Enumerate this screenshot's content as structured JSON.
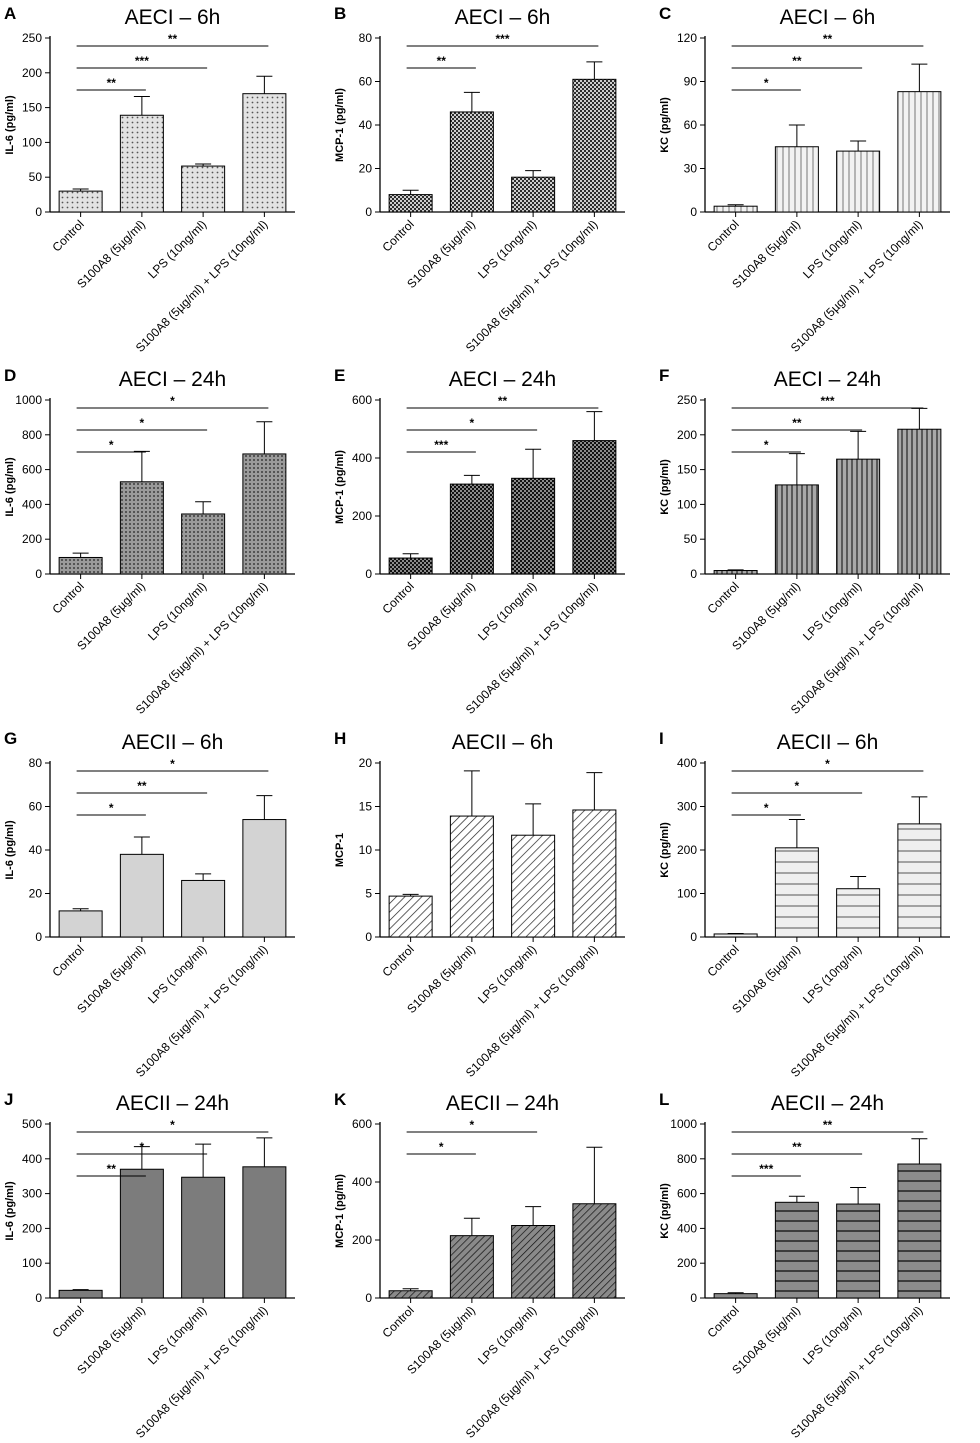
{
  "figure": {
    "description_free": true
  },
  "chart_data": [
    {
      "id": "A",
      "type": "bar",
      "letter": "A",
      "title": "AECI – 6h",
      "ylabel": "IL-6 (pg/ml)",
      "ylim": [
        0,
        250
      ],
      "yticks": [
        0,
        50,
        100,
        150,
        200,
        250
      ],
      "categories": [
        "Control",
        "S100A8 (5µg/ml)",
        "LPS (10ng/ml)",
        "S100A8 (5µg/ml) + LPS (10ng/ml)"
      ],
      "values": [
        30,
        139,
        66,
        170
      ],
      "errors": [
        3,
        27,
        3,
        25
      ],
      "brackets": [
        {
          "from": 0,
          "to": 1,
          "label": "**"
        },
        {
          "from": 0,
          "to": 2,
          "label": "***"
        },
        {
          "from": 0,
          "to": 3,
          "label": "**"
        }
      ],
      "fill": "#e2e2e2",
      "pattern": "dots-light"
    },
    {
      "id": "B",
      "type": "bar",
      "letter": "B",
      "title": "AECI – 6h",
      "ylabel": "MCP-1 (pg/ml)",
      "ylim": [
        0,
        80
      ],
      "yticks": [
        0,
        20,
        40,
        60,
        80
      ],
      "categories": [
        "Control",
        "S100A8 (5µg/ml)",
        "LPS (10ng/ml)",
        "S100A8 (5µg/ml) + LPS (10ng/ml)"
      ],
      "values": [
        8,
        46,
        16,
        61
      ],
      "errors": [
        2,
        9,
        3,
        8
      ],
      "brackets": [
        {
          "from": 0,
          "to": 1,
          "label": "**"
        },
        {
          "from": 0,
          "to": 3,
          "label": "***"
        }
      ],
      "fill": "#a6a6a6",
      "pattern": "checker"
    },
    {
      "id": "C",
      "type": "bar",
      "letter": "C",
      "title": "AECI – 6h",
      "ylabel": "KC (pg/ml)",
      "ylim": [
        0,
        120
      ],
      "yticks": [
        0,
        30,
        60,
        90,
        120
      ],
      "categories": [
        "Control",
        "S100A8 (5µg/ml)",
        "LPS (10ng/ml)",
        "S100A8 (5µg/ml) + LPS (10ng/ml)"
      ],
      "values": [
        4,
        45,
        42,
        83
      ],
      "errors": [
        1,
        15,
        7,
        19
      ],
      "brackets": [
        {
          "from": 0,
          "to": 1,
          "label": "*"
        },
        {
          "from": 0,
          "to": 2,
          "label": "**"
        },
        {
          "from": 0,
          "to": 3,
          "label": "**"
        }
      ],
      "fill": "#f0f0f0",
      "pattern": "vlines-light"
    },
    {
      "id": "D",
      "type": "bar",
      "letter": "D",
      "title": "AECI – 24h",
      "ylabel": "IL-6 (pg/ml)",
      "ylim": [
        0,
        1000
      ],
      "yticks": [
        0,
        200,
        400,
        600,
        800,
        1000
      ],
      "categories": [
        "Control",
        "S100A8 (5µg/ml)",
        "LPS (10ng/ml)",
        "S100A8 (5µg/ml) + LPS (10ng/ml)"
      ],
      "values": [
        95,
        530,
        345,
        690
      ],
      "errors": [
        25,
        175,
        70,
        185
      ],
      "brackets": [
        {
          "from": 0,
          "to": 1,
          "label": "*"
        },
        {
          "from": 0,
          "to": 2,
          "label": "*"
        },
        {
          "from": 0,
          "to": 3,
          "label": "*"
        }
      ],
      "fill": "#8f8f8f",
      "pattern": "dots-dark"
    },
    {
      "id": "E",
      "type": "bar",
      "letter": "E",
      "title": "AECI – 24h",
      "ylabel": "MCP-1 (pg/ml)",
      "ylim": [
        0,
        600
      ],
      "yticks": [
        0,
        200,
        400,
        600
      ],
      "categories": [
        "Control",
        "S100A8 (5µg/ml)",
        "LPS (10ng/ml)",
        "S100A8 (5µg/ml) + LPS (10ng/ml)"
      ],
      "values": [
        55,
        310,
        330,
        460
      ],
      "errors": [
        15,
        30,
        100,
        100
      ],
      "brackets": [
        {
          "from": 0,
          "to": 1,
          "label": "***"
        },
        {
          "from": 0,
          "to": 2,
          "label": "*"
        },
        {
          "from": 0,
          "to": 3,
          "label": "**"
        }
      ],
      "fill": "#4a4a4a",
      "pattern": "checker-dark"
    },
    {
      "id": "F",
      "type": "bar",
      "letter": "F",
      "title": "AECI – 24h",
      "ylabel": "KC (pg/ml)",
      "ylim": [
        0,
        250
      ],
      "yticks": [
        0,
        50,
        100,
        150,
        200,
        250
      ],
      "categories": [
        "Control",
        "S100A8 (5µg/ml)",
        "LPS (10ng/ml)",
        "S100A8 (5µg/ml) + LPS (10ng/ml)"
      ],
      "values": [
        5,
        128,
        165,
        208
      ],
      "errors": [
        1,
        45,
        40,
        30
      ],
      "brackets": [
        {
          "from": 0,
          "to": 1,
          "label": "*"
        },
        {
          "from": 0,
          "to": 2,
          "label": "**"
        },
        {
          "from": 0,
          "to": 3,
          "label": "***"
        }
      ],
      "fill": "#9a9a9a",
      "pattern": "vlines-dark"
    },
    {
      "id": "G",
      "type": "bar",
      "letter": "G",
      "title": "AECII – 6h",
      "ylabel": "IL-6 (pg/ml)",
      "ylim": [
        0,
        80
      ],
      "yticks": [
        0,
        20,
        40,
        60,
        80
      ],
      "categories": [
        "Control",
        "S100A8 (5µg/ml)",
        "LPS (10ng/ml)",
        "S100A8 (5µg/ml) + LPS (10ng/ml)"
      ],
      "values": [
        12,
        38,
        26,
        54
      ],
      "errors": [
        1,
        8,
        3,
        11
      ],
      "brackets": [
        {
          "from": 0,
          "to": 1,
          "label": "*"
        },
        {
          "from": 0,
          "to": 2,
          "label": "**"
        },
        {
          "from": 0,
          "to": 3,
          "label": "*"
        }
      ],
      "fill": "#d3d3d3",
      "pattern": "none"
    },
    {
      "id": "H",
      "type": "bar",
      "letter": "H",
      "title": "AECII – 6h",
      "ylabel": "MCP-1",
      "ylim": [
        0,
        20
      ],
      "yticks": [
        0,
        5,
        10,
        15,
        20
      ],
      "categories": [
        "Control",
        "S100A8 (5µg/ml)",
        "LPS (10ng/ml)",
        "S100A8 (5µg/ml) + LPS (10ng/ml)"
      ],
      "values": [
        4.7,
        13.9,
        11.7,
        14.6
      ],
      "errors": [
        0.2,
        5.2,
        3.6,
        4.3
      ],
      "brackets": [],
      "fill": "#ffffff",
      "pattern": "diag"
    },
    {
      "id": "I",
      "type": "bar",
      "letter": "I",
      "title": "AECII – 6h",
      "ylabel": "KC (pg/ml)",
      "ylim": [
        0,
        400
      ],
      "yticks": [
        0,
        100,
        200,
        300,
        400
      ],
      "categories": [
        "Control",
        "S100A8 (5µg/ml)",
        "LPS (10ng/ml)",
        "S100A8 (5µg/ml) + LPS (10ng/ml)"
      ],
      "values": [
        7,
        205,
        111,
        260
      ],
      "errors": [
        1,
        65,
        28,
        62
      ],
      "brackets": [
        {
          "from": 0,
          "to": 1,
          "label": "*"
        },
        {
          "from": 0,
          "to": 2,
          "label": "*"
        },
        {
          "from": 0,
          "to": 3,
          "label": "*"
        }
      ],
      "fill": "#ededed",
      "pattern": "hlines-light"
    },
    {
      "id": "J",
      "type": "bar",
      "letter": "J",
      "title": "AECII – 24h",
      "ylabel": "IL-6 (pg/ml)",
      "ylim": [
        0,
        500
      ],
      "yticks": [
        0,
        100,
        200,
        300,
        400,
        500
      ],
      "categories": [
        "Control",
        "S100A8 (5µg/ml)",
        "LPS (10ng/ml)",
        "S100A8 (5µg/ml) + LPS (10ng/ml)"
      ],
      "values": [
        22,
        370,
        347,
        377
      ],
      "errors": [
        2,
        65,
        95,
        83
      ],
      "brackets": [
        {
          "from": 0,
          "to": 1,
          "label": "**"
        },
        {
          "from": 0,
          "to": 2,
          "label": "*"
        },
        {
          "from": 0,
          "to": 3,
          "label": "*"
        }
      ],
      "fill": "#7c7c7c",
      "pattern": "none"
    },
    {
      "id": "K",
      "type": "bar",
      "letter": "K",
      "title": "AECII – 24h",
      "ylabel": "MCP-1 (pg/ml)",
      "ylim": [
        0,
        600
      ],
      "yticks": [
        0,
        200,
        400,
        600
      ],
      "categories": [
        "Control",
        "S100A8 (5µg/ml)",
        "LPS (10ng/ml)",
        "S100A8 (5µg/ml) + LPS (10ng/ml)"
      ],
      "values": [
        25,
        215,
        250,
        325
      ],
      "errors": [
        7,
        60,
        65,
        195
      ],
      "brackets": [
        {
          "from": 0,
          "to": 1,
          "label": "*"
        },
        {
          "from": 0,
          "to": 2,
          "label": "*"
        }
      ],
      "fill": "#8a8a8a",
      "pattern": "diag-dark"
    },
    {
      "id": "L",
      "type": "bar",
      "letter": "L",
      "title": "AECII – 24h",
      "ylabel": "KC (pg/ml)",
      "ylim": [
        0,
        1000
      ],
      "yticks": [
        0,
        200,
        400,
        600,
        800,
        1000
      ],
      "categories": [
        "Control",
        "S100A8 (5µg/ml)",
        "LPS (10ng/ml)",
        "S100A8 (5µg/ml) + LPS (10ng/ml)"
      ],
      "values": [
        25,
        550,
        540,
        770
      ],
      "errors": [
        5,
        35,
        95,
        145
      ],
      "brackets": [
        {
          "from": 0,
          "to": 1,
          "label": "***"
        },
        {
          "from": 0,
          "to": 2,
          "label": "**"
        },
        {
          "from": 0,
          "to": 3,
          "label": "**"
        }
      ],
      "fill": "#8c8c8c",
      "pattern": "hlines-dark"
    }
  ]
}
